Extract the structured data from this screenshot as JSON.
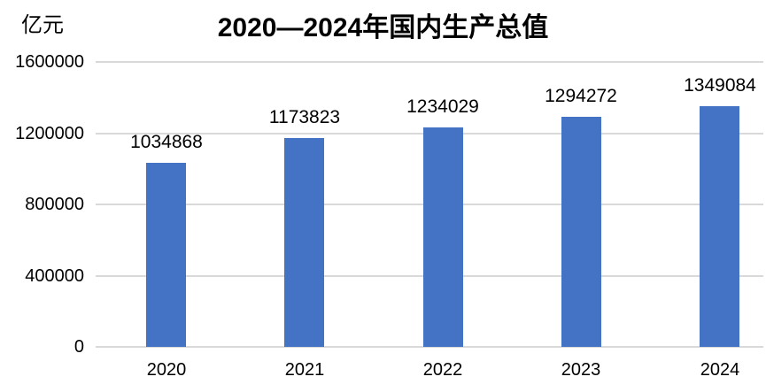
{
  "chart_data": {
    "type": "bar",
    "title": "2020—2024年国内生产总值",
    "unit_label": "亿元",
    "categories": [
      "2020",
      "2021",
      "2022",
      "2023",
      "2024"
    ],
    "values": [
      1034868,
      1173823,
      1234029,
      1294272,
      1349084
    ],
    "data_labels": [
      "1034868",
      "1173823",
      "1234029",
      "1294272",
      "1349084"
    ],
    "xlabel": "",
    "ylabel": "亿元",
    "ylim": [
      0,
      1600000
    ],
    "y_ticks": [
      0,
      400000,
      800000,
      1200000,
      1600000
    ],
    "y_tick_labels": [
      "0",
      "400000",
      "800000",
      "1200000",
      "1600000"
    ],
    "grid": "horizontal",
    "legend": "none",
    "bar_color": "#4472C4",
    "gridline_color": "#D9D9D9",
    "text_color": "#000000",
    "background_color": "#FFFFFF"
  }
}
